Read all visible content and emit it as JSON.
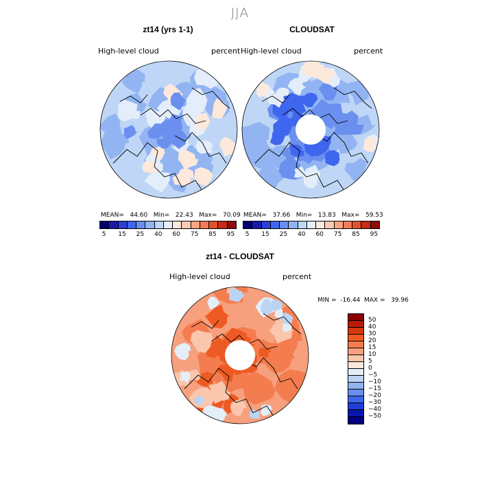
{
  "season_title": "JJA",
  "panels": [
    {
      "title": "zt14 (yrs 1-1)",
      "field_label": "High-level cloud",
      "units": "percent",
      "stats": "MEAN=   44.60   Min=   22.43   Max=   70.09",
      "palette": "abs",
      "hole": false
    },
    {
      "title": "CLOUDSAT",
      "field_label": "High-level cloud",
      "units": "percent",
      "stats": "MEAN=   37.66   Min=   13.83   Max=   59.53",
      "palette": "abs",
      "hole": true
    },
    {
      "title": "zt14 - CLOUDSAT",
      "field_label": "High-level cloud",
      "units": "percent",
      "stats": "MIN =  -16.44  MAX =   39.96",
      "palette": "diff",
      "hole": true
    }
  ],
  "abs_colorbar": {
    "colors": [
      "#000070",
      "#1a1aa8",
      "#2b3fd9",
      "#3f66ee",
      "#6a8fef",
      "#92b4f2",
      "#bfd6f6",
      "#e4eefa",
      "#fde9dc",
      "#fccab2",
      "#f8a686",
      "#f17b5b",
      "#e3512f",
      "#c42b14",
      "#8f0a0a"
    ],
    "tick_labels": [
      "5",
      "15",
      "25",
      "40",
      "60",
      "75",
      "85",
      "95"
    ]
  },
  "diff_colorbar": {
    "colors": [
      "#8b0000",
      "#b81c08",
      "#d8380d",
      "#ee5a24",
      "#f47d4f",
      "#f7a07e",
      "#fac6ad",
      "#fde8dc",
      "#e3eef9",
      "#bcd4f4",
      "#93b3f1",
      "#6a8fef",
      "#3f66ee",
      "#1f3ed8",
      "#0a16b0",
      "#000080"
    ],
    "tick_labels": [
      "50",
      "40",
      "30",
      "20",
      "15",
      "10",
      "5",
      "0",
      "−5",
      "−10",
      "−15",
      "−20",
      "−30",
      "−40",
      "−50"
    ]
  }
}
